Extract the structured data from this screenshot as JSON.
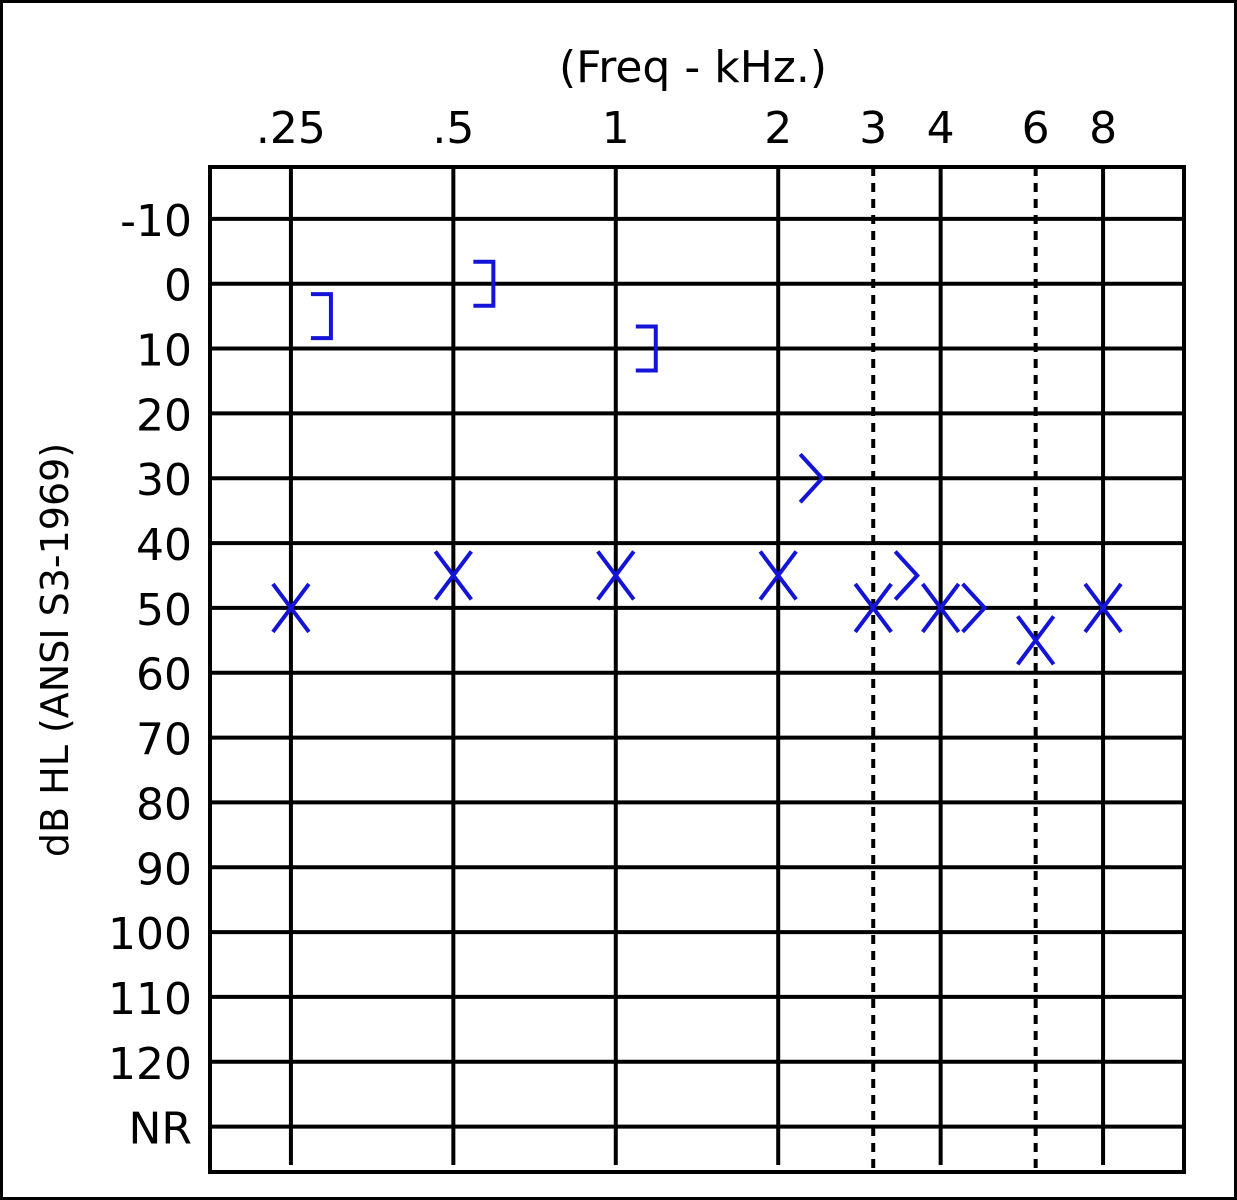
{
  "chart_data": {
    "type": "scatter",
    "title": "",
    "xlabel": "(Freq - kHz.)",
    "ylabel": "dB HL (ANSI S3-1969)",
    "x_scale": "log",
    "x_ticks": [
      {
        "value": 0.25,
        "label": ".25",
        "dashed": false
      },
      {
        "value": 0.5,
        "label": ".5",
        "dashed": false
      },
      {
        "value": 1,
        "label": "1",
        "dashed": false
      },
      {
        "value": 2,
        "label": "2",
        "dashed": false
      },
      {
        "value": 3,
        "label": "3",
        "dashed": true
      },
      {
        "value": 4,
        "label": "4",
        "dashed": false
      },
      {
        "value": 6,
        "label": "6",
        "dashed": true
      },
      {
        "value": 8,
        "label": "8",
        "dashed": false
      }
    ],
    "xlim": [
      0.177,
      11.3
    ],
    "y_inverted": true,
    "y_ticks": [
      {
        "value": -10,
        "label": "-10"
      },
      {
        "value": 0,
        "label": "0"
      },
      {
        "value": 10,
        "label": "10"
      },
      {
        "value": 20,
        "label": "20"
      },
      {
        "value": 30,
        "label": "30"
      },
      {
        "value": 40,
        "label": "40"
      },
      {
        "value": 50,
        "label": "50"
      },
      {
        "value": 60,
        "label": "60"
      },
      {
        "value": 70,
        "label": "70"
      },
      {
        "value": 80,
        "label": "80"
      },
      {
        "value": 90,
        "label": "90"
      },
      {
        "value": 100,
        "label": "100"
      },
      {
        "value": 110,
        "label": "110"
      },
      {
        "value": 120,
        "label": "120"
      },
      {
        "value": 130,
        "label": "NR"
      }
    ],
    "ylim": [
      -18,
      137
    ],
    "grid": true,
    "marker_color": "#1414d8",
    "series": [
      {
        "marker": "x",
        "points": [
          {
            "x": 0.25,
            "y": 50
          },
          {
            "x": 0.5,
            "y": 45
          },
          {
            "x": 1,
            "y": 45
          },
          {
            "x": 2,
            "y": 45
          },
          {
            "x": 3,
            "y": 50
          },
          {
            "x": 4,
            "y": 50
          },
          {
            "x": 6,
            "y": 55
          },
          {
            "x": 8,
            "y": 50
          }
        ]
      },
      {
        "marker": "]",
        "points": [
          {
            "x": 0.25,
            "y": 5
          },
          {
            "x": 0.5,
            "y": 0
          },
          {
            "x": 1,
            "y": 10
          }
        ]
      },
      {
        "marker": ">",
        "points": [
          {
            "x": 2,
            "y": 30
          },
          {
            "x": 3,
            "y": 45
          },
          {
            "x": 4,
            "y": 50
          }
        ]
      }
    ]
  }
}
